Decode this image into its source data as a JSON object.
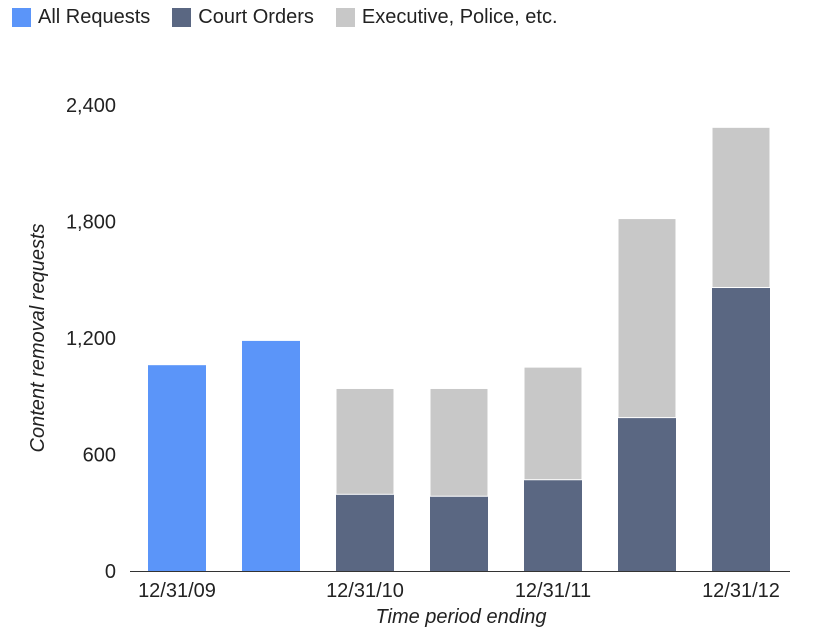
{
  "chart_data": {
    "type": "bar",
    "stacked": true,
    "categories": [
      "12/31/09",
      "",
      "12/31/10",
      "",
      "12/31/11",
      "",
      "12/31/12"
    ],
    "series": [
      {
        "name": "All Requests",
        "color": "#5B95F9",
        "values": [
          1060,
          1185,
          0,
          0,
          0,
          0,
          0
        ]
      },
      {
        "name": "Court Orders",
        "color": "#5A6782",
        "values": [
          0,
          0,
          395,
          385,
          470,
          790,
          1460
        ]
      },
      {
        "name": "Executive, Police, etc.",
        "color": "#C8C8C8",
        "values": [
          0,
          0,
          545,
          555,
          580,
          1025,
          825
        ]
      }
    ],
    "xlabel": "Time period ending",
    "ylabel": "Content removal requests",
    "ylim": [
      0,
      2400
    ],
    "yticks": [
      0,
      600,
      1200,
      1800,
      2400
    ],
    "ytick_labels": [
      "0",
      "600",
      "1,200",
      "1,800",
      "2,400"
    ],
    "grid": false,
    "legend": "top-left"
  }
}
